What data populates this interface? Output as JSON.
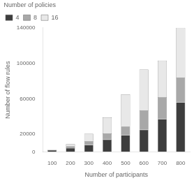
{
  "chart_data": {
    "type": "bar",
    "stacked": true,
    "xlabel": "Number of participants",
    "ylabel": "Number of flow rules",
    "categories": [
      "100",
      "200",
      "300",
      "400",
      "500",
      "600",
      "700",
      "800"
    ],
    "series": [
      {
        "name": "4",
        "color": "#3d3d3d",
        "values": [
          2000,
          4500,
          8000,
          14000,
          19000,
          25000,
          37000,
          56000
        ]
      },
      {
        "name": "8",
        "color": "#a8a8a8",
        "values": [
          400,
          2000,
          4500,
          7000,
          10000,
          22000,
          25000,
          28000
        ]
      },
      {
        "name": "16",
        "color": "#e8e8e8",
        "values": [
          300,
          2500,
          8000,
          18000,
          36000,
          46000,
          41000,
          56000
        ]
      }
    ],
    "legend_title": "Number of policies",
    "legend": "upper left",
    "ylim": [
      0,
      140000
    ],
    "yticks": [
      0,
      20000,
      60000,
      100000,
      140000
    ],
    "grid": false
  }
}
